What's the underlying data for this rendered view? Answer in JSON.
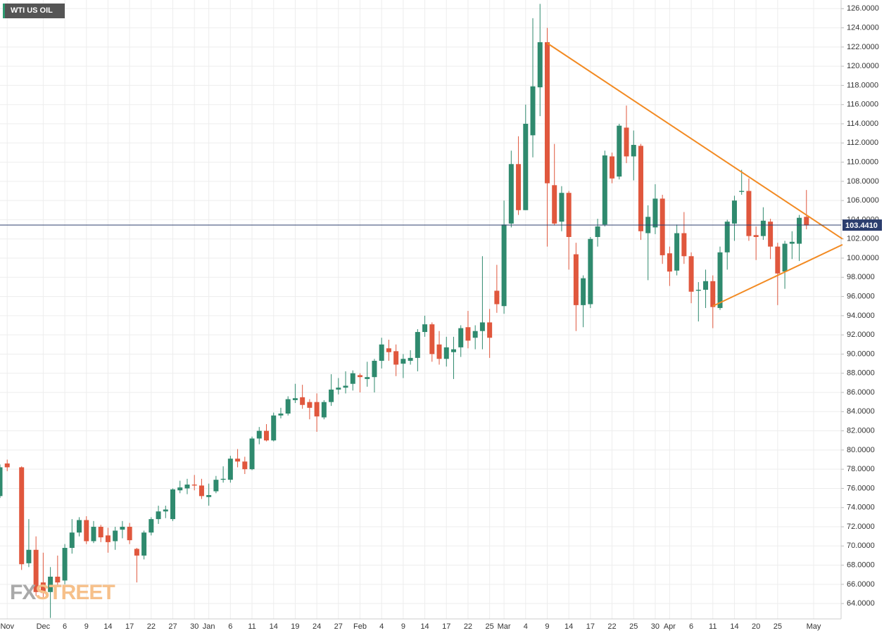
{
  "chart_data": {
    "type": "candlestick",
    "title": "WTI US OIL",
    "watermark": {
      "part1": "FX",
      "part2": "STREET"
    },
    "categories": [
      null,
      "Nov",
      null,
      null,
      null,
      null,
      "Dec",
      null,
      null,
      "6",
      null,
      null,
      "9",
      null,
      null,
      "14",
      null,
      null,
      "17",
      null,
      null,
      "22",
      null,
      null,
      "27",
      null,
      null,
      "30",
      null,
      "Jan",
      null,
      null,
      "6",
      null,
      null,
      "11",
      null,
      null,
      "14",
      null,
      null,
      "19",
      null,
      null,
      "24",
      null,
      null,
      "27",
      null,
      null,
      "Feb",
      null,
      null,
      "4",
      null,
      null,
      "9",
      null,
      null,
      "14",
      null,
      null,
      "17",
      null,
      null,
      "22",
      null,
      null,
      "25",
      null,
      "Mar",
      null,
      null,
      "4",
      null,
      null,
      "9",
      null,
      null,
      "14",
      null,
      null,
      "17",
      null,
      null,
      "22",
      null,
      null,
      "25",
      null,
      null,
      "30",
      null,
      "Apr",
      null,
      null,
      "6",
      null,
      null,
      "11",
      null,
      null,
      "14",
      null,
      null,
      "20",
      null,
      null,
      "25",
      null,
      null,
      null,
      null,
      "May"
    ],
    "open": [
      75.2,
      78.6,
      null,
      78.2,
      68.2,
      69.6,
      66.2,
      65.2,
      66.8,
      66.4,
      69.8,
      71.4,
      72.7,
      70.5,
      72.0,
      71.1,
      70.5,
      71.7,
      72.0,
      69.7,
      69.0,
      71.4,
      72.8,
      73.6,
      72.8,
      75.8,
      76.0,
      76.4,
      76.3,
      75.1,
      75.7,
      76.9,
      76.9,
      79.1,
      78.8,
      78.0,
      81.2,
      82.0,
      81.0,
      83.6,
      83.8,
      85.2,
      85.5,
      85.0,
      85.0,
      83.4,
      85.0,
      86.3,
      86.5,
      86.9,
      87.8,
      87.4,
      87.6,
      89.3,
      90.6,
      90.3,
      89.0,
      89.3,
      89.6,
      92.3,
      93.1,
      91.0,
      89.5,
      90.2,
      90.7,
      92.8,
      91.7,
      92.4,
      93.3,
      96.6,
      95.0,
      103.6,
      109.8,
      105.0,
      112.8,
      117.8,
      122.5,
      107.6,
      103.8,
      106.8,
      100.4,
      95.1,
      95.2,
      102.2,
      103.5,
      110.6,
      108.5,
      113.6,
      110.6,
      111.7,
      102.6,
      103.2,
      106.2,
      100.5,
      98.7,
      102.6,
      100.2,
      96.6,
      96.7,
      97.6,
      94.8,
      100.6,
      103.6,
      106.9,
      107.0,
      102.4,
      102.3,
      103.8,
      101.2,
      98.6,
      101.5,
      101.5,
      104.3,
      null
    ],
    "high": [
      78.5,
      79.0,
      null,
      78.3,
      72.8,
      71.0,
      69.3,
      67.8,
      69.0,
      70.2,
      72.8,
      73.0,
      73.1,
      72.6,
      72.2,
      71.9,
      72.0,
      72.6,
      72.4,
      69.8,
      71.6,
      73.0,
      74.2,
      74.2,
      76.0,
      76.8,
      77.0,
      77.4,
      77.0,
      76.5,
      77.3,
      78.3,
      79.4,
      80.1,
      79.3,
      81.4,
      82.4,
      82.7,
      83.9,
      84.4,
      85.6,
      86.9,
      86.8,
      85.3,
      85.9,
      85.2,
      87.9,
      87.5,
      88.2,
      88.3,
      88.0,
      89.2,
      89.5,
      91.7,
      91.5,
      91.0,
      90.0,
      90.4,
      92.6,
      94.0,
      93.3,
      92.4,
      91.8,
      91.8,
      93.0,
      94.5,
      93.0,
      100.2,
      94.7,
      99.3,
      106.0,
      111.2,
      112.7,
      116.0,
      125.0,
      126.5,
      124.0,
      111.9,
      107.5,
      107.0,
      101.6,
      98.2,
      102.2,
      104.1,
      111.2,
      111.0,
      114.0,
      115.9,
      113.3,
      111.9,
      105.5,
      107.7,
      106.6,
      101.2,
      103.5,
      104.8,
      100.6,
      97.5,
      98.8,
      98.2,
      101.2,
      104.0,
      106.5,
      109.2,
      108.3,
      103.3,
      105.3,
      104.1,
      101.6,
      101.8,
      102.8,
      104.5,
      107.1,
      null
    ],
    "low": [
      75.0,
      77.8,
      null,
      67.5,
      67.8,
      64.8,
      64.5,
      62.5,
      65.8,
      66.0,
      69.2,
      71.0,
      70.2,
      70.3,
      70.4,
      69.3,
      69.6,
      70.8,
      70.2,
      66.2,
      68.6,
      71.1,
      72.3,
      72.9,
      72.6,
      75.5,
      75.4,
      75.8,
      74.9,
      74.2,
      75.5,
      76.6,
      76.6,
      78.2,
      77.5,
      77.9,
      80.6,
      80.9,
      80.9,
      83.3,
      83.6,
      84.9,
      84.3,
      83.2,
      81.9,
      83.2,
      84.6,
      85.8,
      85.9,
      86.2,
      86.0,
      86.6,
      86.0,
      88.5,
      89.3,
      87.7,
      87.5,
      88.9,
      88.2,
      91.8,
      89.2,
      88.9,
      88.7,
      87.4,
      89.7,
      90.6,
      90.5,
      90.5,
      89.6,
      94.3,
      94.2,
      103.2,
      104.5,
      105.0,
      110.5,
      114.8,
      101.2,
      103.4,
      102.8,
      98.8,
      92.4,
      92.8,
      94.8,
      101.2,
      103.3,
      107.8,
      108.2,
      109.9,
      108.1,
      101.9,
      97.7,
      102.5,
      99.4,
      97.1,
      98.2,
      99.4,
      95.3,
      93.4,
      94.8,
      92.7,
      94.6,
      98.8,
      101.8,
      106.6,
      101.8,
      99.8,
      101.9,
      99.9,
      95.1,
      96.8,
      99.9,
      99.7,
      103.0,
      null
    ],
    "close": [
      78.2,
      78.2,
      null,
      68.1,
      69.6,
      65.2,
      65.1,
      66.8,
      66.2,
      69.8,
      71.4,
      72.7,
      70.5,
      72.0,
      70.9,
      70.4,
      71.6,
      72.0,
      70.6,
      69.0,
      71.4,
      72.8,
      73.6,
      73.8,
      75.9,
      76.1,
      76.4,
      76.3,
      75.2,
      75.3,
      76.9,
      77.0,
      79.1,
      78.8,
      78.0,
      81.2,
      82.0,
      81.0,
      83.6,
      83.8,
      85.3,
      85.4,
      84.7,
      84.4,
      83.5,
      85.0,
      86.3,
      86.5,
      86.7,
      88.0,
      87.6,
      87.6,
      89.3,
      91.0,
      90.2,
      88.9,
      89.5,
      89.6,
      92.3,
      93.1,
      90.0,
      89.5,
      90.7,
      90.5,
      92.7,
      91.4,
      92.4,
      93.3,
      91.7,
      95.2,
      103.5,
      109.8,
      105.0,
      114.0,
      117.9,
      122.5,
      107.8,
      103.6,
      106.8,
      102.2,
      95.1,
      97.9,
      102.0,
      103.3,
      110.7,
      108.3,
      113.8,
      110.6,
      111.8,
      102.8,
      104.3,
      106.2,
      100.3,
      98.6,
      102.6,
      100.2,
      96.5,
      96.7,
      97.6,
      94.9,
      100.6,
      103.8,
      106.0,
      107.0,
      102.3,
      102.2,
      103.9,
      101.2,
      98.4,
      101.5,
      101.7,
      104.2,
      103.4,
      null
    ],
    "up_color": "#2f8a6e",
    "down_color": "#e0573d",
    "ylim": [
      62.4,
      126.9
    ],
    "yticks": [
      {
        "value": 64,
        "label": "64.0000"
      },
      {
        "value": 66,
        "label": "66.0000"
      },
      {
        "value": 68,
        "label": "68.0000"
      },
      {
        "value": 70,
        "label": "70.0000"
      },
      {
        "value": 72,
        "label": "72.0000"
      },
      {
        "value": 74,
        "label": "74.0000"
      },
      {
        "value": 76,
        "label": "76.0000"
      },
      {
        "value": 78,
        "label": "78.0000"
      },
      {
        "value": 80,
        "label": "80.0000"
      },
      {
        "value": 82,
        "label": "82.0000"
      },
      {
        "value": 84,
        "label": "84.0000"
      },
      {
        "value": 86,
        "label": "86.0000"
      },
      {
        "value": 88,
        "label": "88.0000"
      },
      {
        "value": 90,
        "label": "90.0000"
      },
      {
        "value": 92,
        "label": "92.0000"
      },
      {
        "value": 94,
        "label": "94.0000"
      },
      {
        "value": 96,
        "label": "96.0000"
      },
      {
        "value": 98,
        "label": "98.0000"
      },
      {
        "value": 100,
        "label": "100.0000"
      },
      {
        "value": 102,
        "label": "102.0000"
      },
      {
        "value": 104,
        "label": "104.0000"
      },
      {
        "value": 106,
        "label": "106.0000"
      },
      {
        "value": 108,
        "label": "108.0000"
      },
      {
        "value": 110,
        "label": "110.0000"
      },
      {
        "value": 112,
        "label": "112.0000"
      },
      {
        "value": 114,
        "label": "114.0000"
      },
      {
        "value": 116,
        "label": "116.0000"
      },
      {
        "value": 118,
        "label": "118.0000"
      },
      {
        "value": 120,
        "label": "120.0000"
      },
      {
        "value": 122,
        "label": "122.0000"
      },
      {
        "value": 124,
        "label": "124.0000"
      },
      {
        "value": 126,
        "label": "126.0000"
      }
    ],
    "grid": true,
    "last_price": {
      "value": 103.441,
      "label": "103.4410",
      "color": "#2c3e6e"
    },
    "trendlines": [
      {
        "color": "#f28a22",
        "points": [
          [
            76,
            122.4
          ],
          [
            117,
            102.0
          ]
        ]
      },
      {
        "color": "#f28a22",
        "points": [
          [
            99,
            95.0
          ],
          [
            117,
            101.4
          ]
        ]
      }
    ]
  }
}
